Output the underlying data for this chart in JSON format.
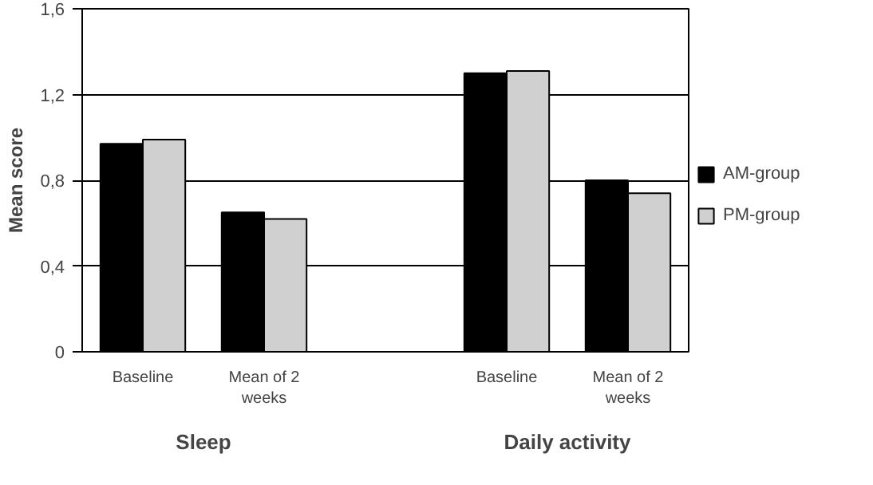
{
  "chart_data": {
    "type": "bar",
    "ylabel": "Mean score",
    "categories": [
      "Baseline",
      "Mean of 2 weeks",
      null,
      "Baseline",
      "Mean of 2 weeks"
    ],
    "series": [
      {
        "name": "AM-group",
        "color": "#000000",
        "values": [
          0.97,
          0.65,
          null,
          1.3,
          0.8
        ]
      },
      {
        "name": "PM-group",
        "color": "#d0d0d0",
        "values": [
          0.99,
          0.62,
          null,
          1.31,
          0.74
        ]
      }
    ],
    "ylim": [
      0,
      1.6
    ],
    "yticks": [
      {
        "value": 0,
        "label": "0"
      },
      {
        "value": 0.4,
        "label": "0,4"
      },
      {
        "value": 0.8,
        "label": "0,8"
      },
      {
        "value": 1.2,
        "label": "1,2"
      },
      {
        "value": 1.6,
        "label": "1,6"
      }
    ],
    "annotations": [
      "Sleep",
      "Daily activity"
    ],
    "grid": "y",
    "legend": "right"
  }
}
